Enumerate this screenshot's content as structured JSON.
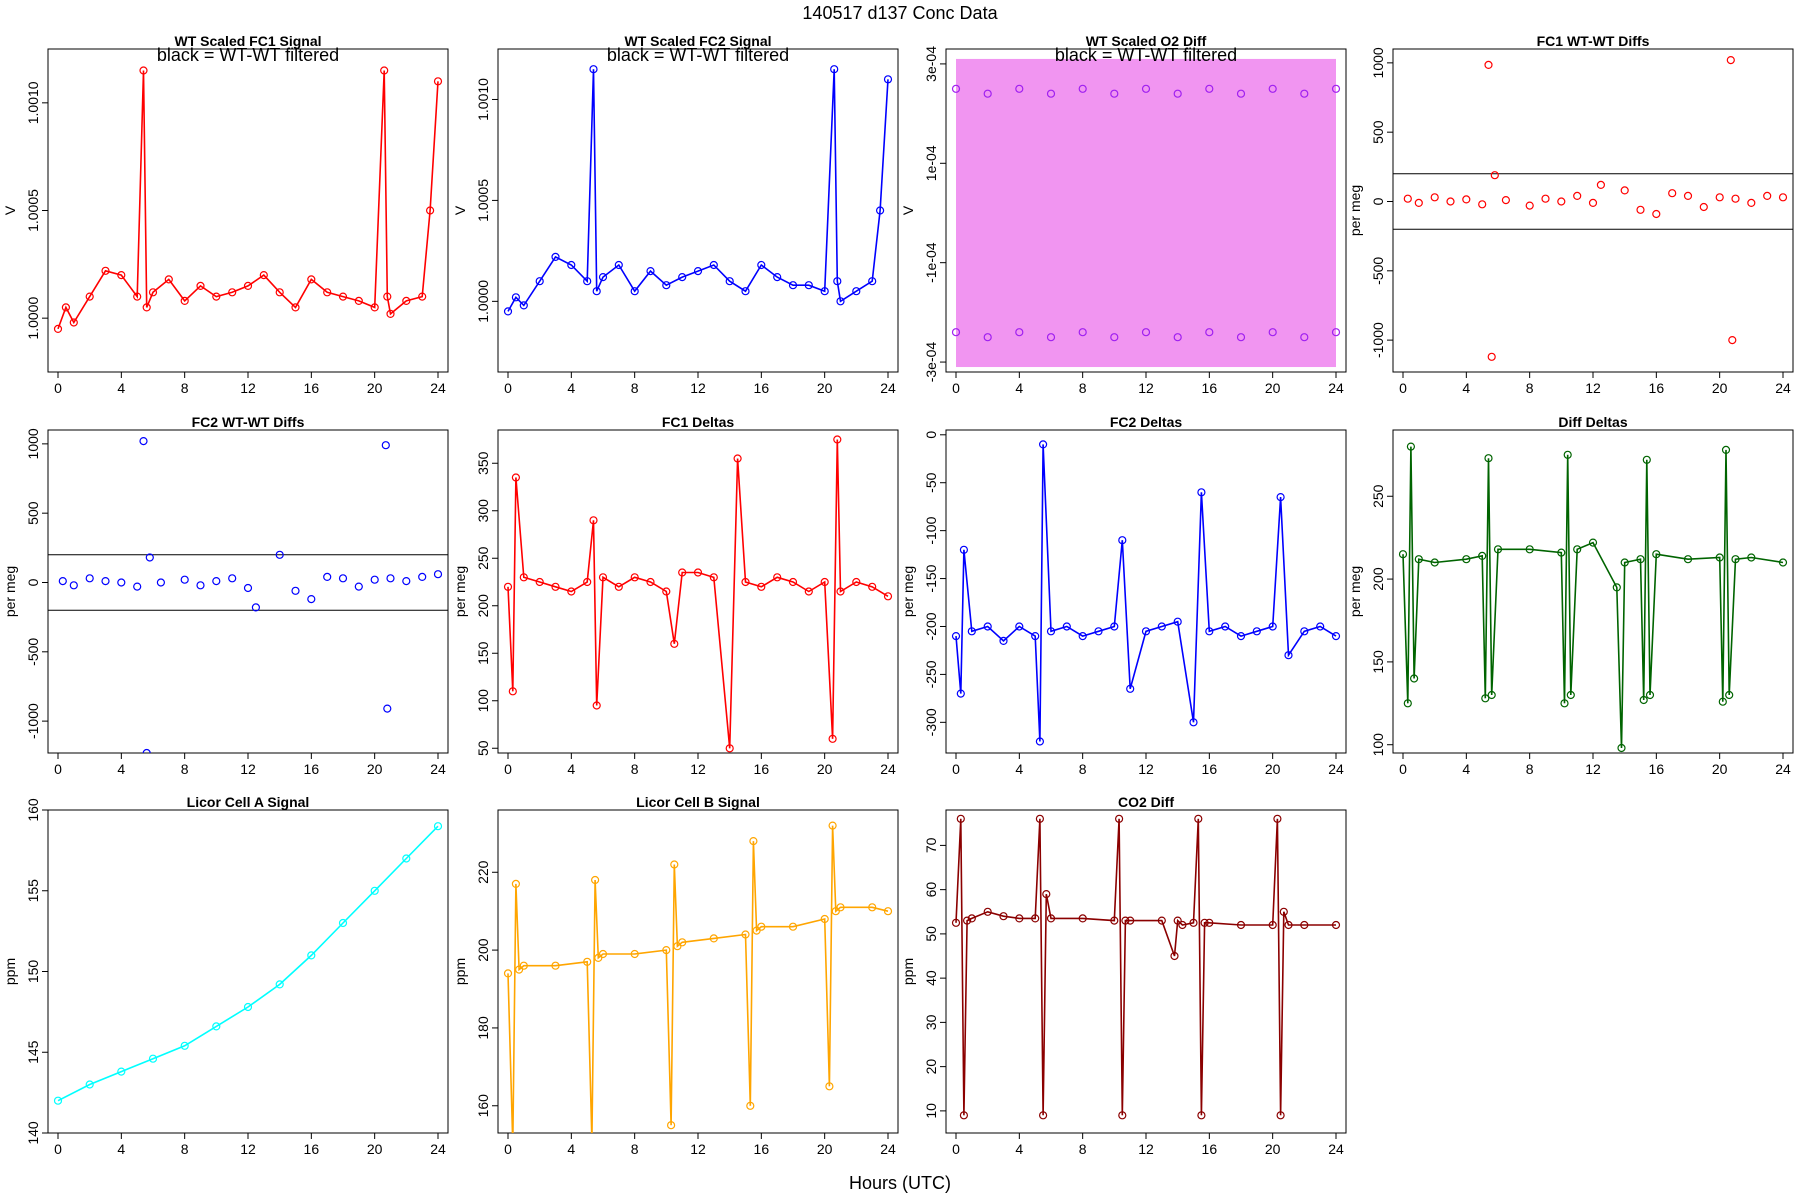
{
  "figure": {
    "title": "140517   d137   Conc Data",
    "xlabel": "Hours (UTC)",
    "xticks": [
      0,
      4,
      8,
      12,
      16,
      20,
      24
    ],
    "xlim": [
      0,
      24
    ]
  },
  "chart_data": [
    {
      "type": "line",
      "title": "WT Scaled FC1 Signal",
      "ylabel": "V",
      "annotation": "black = WT-WT filtered",
      "color": "#ff0000",
      "ylim": [
        0.99975,
        1.00125
      ],
      "yticks": [
        1.0,
        1.0005,
        1.001
      ],
      "ytick_labels": [
        "1.0000",
        "1.0005",
        "1.0010"
      ],
      "series": [
        {
          "name": "FC1 signal",
          "x": [
            0,
            0.5,
            1,
            2,
            3,
            4,
            5,
            5.4,
            5.6,
            6,
            7,
            8,
            9,
            10,
            11,
            12,
            13,
            14,
            15,
            16,
            17,
            18,
            19,
            20,
            20.6,
            20.8,
            21,
            22,
            23,
            23.5,
            24
          ],
          "y": [
            0.99995,
            1.00005,
            0.99998,
            1.0001,
            1.00022,
            1.0002,
            1.0001,
            1.00115,
            1.00005,
            1.00012,
            1.00018,
            1.00008,
            1.00015,
            1.0001,
            1.00012,
            1.00015,
            1.0002,
            1.00012,
            1.00005,
            1.00018,
            1.00012,
            1.0001,
            1.00008,
            1.00005,
            1.00115,
            1.0001,
            1.00002,
            1.00008,
            1.0001,
            1.0005,
            1.0011
          ]
        }
      ]
    },
    {
      "type": "line",
      "title": "WT Scaled FC2 Signal",
      "ylabel": "V",
      "annotation": "black = WT-WT filtered",
      "color": "#0000ff",
      "ylim": [
        0.99965,
        1.00125
      ],
      "yticks": [
        1.0,
        1.0005,
        1.001
      ],
      "ytick_labels": [
        "1.0000",
        "1.0005",
        "1.0010"
      ],
      "series": [
        {
          "name": "FC2 signal",
          "x": [
            0,
            0.5,
            1,
            2,
            3,
            4,
            5,
            5.4,
            5.6,
            6,
            7,
            8,
            9,
            10,
            11,
            12,
            13,
            14,
            15,
            16,
            17,
            18,
            19,
            20,
            20.6,
            20.8,
            21,
            22,
            23,
            23.5,
            24
          ],
          "y": [
            0.99995,
            1.00002,
            0.99998,
            1.0001,
            1.00022,
            1.00018,
            1.0001,
            1.00115,
            1.00005,
            1.00012,
            1.00018,
            1.00005,
            1.00015,
            1.00008,
            1.00012,
            1.00015,
            1.00018,
            1.0001,
            1.00005,
            1.00018,
            1.00012,
            1.00008,
            1.00008,
            1.00005,
            1.00115,
            1.0001,
            1.0,
            1.00005,
            1.0001,
            1.00045,
            1.0011
          ]
        }
      ]
    },
    {
      "type": "scatter",
      "title": "WT Scaled O2 Diff",
      "ylabel": "V",
      "annotation": "black = WT-WT filtered",
      "color": "#ee82ee",
      "point_color": "#a020f0",
      "ylim": [
        -0.00032,
        0.00033
      ],
      "yticks": [
        -0.0003,
        -0.0001,
        0.0001,
        0.0003
      ],
      "ytick_labels": [
        "-3e-04",
        "-1e-04",
        "1e-04",
        "3e-04"
      ],
      "series": [
        {
          "name": "upper",
          "x": [
            0,
            2,
            4,
            6,
            8,
            10,
            12,
            14,
            16,
            18,
            20,
            22,
            24
          ],
          "y": [
            0.00025,
            0.00024,
            0.00025,
            0.00024,
            0.00025,
            0.00024,
            0.00025,
            0.00024,
            0.00025,
            0.00024,
            0.00025,
            0.00024,
            0.00025
          ]
        },
        {
          "name": "lower",
          "x": [
            0,
            2,
            4,
            6,
            8,
            10,
            12,
            14,
            16,
            18,
            20,
            22,
            24
          ],
          "y": [
            -0.00024,
            -0.00025,
            -0.00024,
            -0.00025,
            -0.00024,
            -0.00025,
            -0.00024,
            -0.00025,
            -0.00024,
            -0.00025,
            -0.00024,
            -0.00025,
            -0.00024
          ]
        }
      ]
    },
    {
      "type": "scatter",
      "title": "FC1 WT-WT Diffs",
      "ylabel": "per meg",
      "color": "#ff0000",
      "ylim": [
        -1230,
        1100
      ],
      "yticks": [
        -1000,
        -500,
        0,
        500,
        1000
      ],
      "ytick_labels": [
        "-1000",
        "-500",
        "0",
        "500",
        "1000"
      ],
      "hlines": [
        200,
        -200
      ],
      "series": [
        {
          "name": "FC1 diffs",
          "x": [
            0.3,
            1,
            2,
            3,
            4,
            5,
            5.4,
            5.6,
            5.8,
            6.5,
            8,
            9,
            10,
            11,
            12,
            12.5,
            14,
            15,
            16,
            17,
            18,
            19,
            20,
            20.7,
            20.8,
            21,
            22,
            23,
            24
          ],
          "y": [
            20,
            -10,
            30,
            0,
            15,
            -20,
            985,
            -1120,
            190,
            10,
            -30,
            20,
            0,
            40,
            -10,
            120,
            80,
            -60,
            -90,
            60,
            40,
            -40,
            30,
            1020,
            -1000,
            20,
            -10,
            40,
            30
          ]
        }
      ]
    },
    {
      "type": "scatter",
      "title": "FC2 WT-WT Diffs",
      "ylabel": "per meg",
      "color": "#0000ff",
      "ylim": [
        -1230,
        1100
      ],
      "yticks": [
        -1000,
        -500,
        0,
        500,
        1000
      ],
      "ytick_labels": [
        "-1000",
        "-500",
        "0",
        "500",
        "1000"
      ],
      "hlines": [
        200,
        -200
      ],
      "series": [
        {
          "name": "FC2 diffs",
          "x": [
            0.3,
            1,
            2,
            3,
            4,
            5,
            5.4,
            5.6,
            5.8,
            6.5,
            8,
            9,
            10,
            11,
            12,
            12.5,
            14,
            15,
            16,
            17,
            18,
            19,
            20,
            20.7,
            20.8,
            21,
            22,
            23,
            24
          ],
          "y": [
            10,
            -20,
            30,
            10,
            0,
            -30,
            1020,
            -1230,
            180,
            0,
            20,
            -20,
            10,
            30,
            -40,
            -180,
            200,
            -60,
            -120,
            40,
            30,
            -30,
            20,
            990,
            -910,
            30,
            10,
            40,
            60
          ]
        }
      ]
    },
    {
      "type": "line",
      "title": "FC1 Deltas",
      "ylabel": "per meg",
      "color": "#ff0000",
      "ylim": [
        45,
        385
      ],
      "yticks": [
        50,
        100,
        150,
        200,
        250,
        300,
        350
      ],
      "ytick_labels": [
        "50",
        "100",
        "150",
        "200",
        "250",
        "300",
        "350"
      ],
      "series": [
        {
          "name": "FC1 deltas",
          "x": [
            0,
            0.3,
            0.5,
            1,
            2,
            3,
            4,
            5,
            5.4,
            5.6,
            6,
            7,
            8,
            9,
            10,
            10.5,
            11,
            12,
            13,
            14,
            14.5,
            15,
            16,
            17,
            18,
            19,
            20,
            20.5,
            20.8,
            21,
            22,
            23,
            24
          ],
          "y": [
            220,
            110,
            335,
            230,
            225,
            220,
            215,
            225,
            290,
            95,
            230,
            220,
            230,
            225,
            215,
            160,
            235,
            235,
            230,
            50,
            355,
            225,
            220,
            230,
            225,
            215,
            225,
            60,
            375,
            215,
            225,
            220,
            210
          ]
        }
      ]
    },
    {
      "type": "line",
      "title": "FC2 Deltas",
      "ylabel": "per meg",
      "color": "#0000ff",
      "ylim": [
        -332,
        5
      ],
      "yticks": [
        -300,
        -250,
        -200,
        -150,
        -100,
        -50,
        0
      ],
      "ytick_labels": [
        "-300",
        "-250",
        "-200",
        "-150",
        "-100",
        "-50",
        "0"
      ],
      "series": [
        {
          "name": "FC2 deltas",
          "x": [
            0,
            0.3,
            0.5,
            1,
            2,
            3,
            4,
            5,
            5.3,
            5.5,
            6,
            7,
            8,
            9,
            10,
            10.5,
            11,
            12,
            13,
            14,
            15,
            15.5,
            16,
            17,
            18,
            19,
            20,
            20.5,
            21,
            22,
            23,
            24
          ],
          "y": [
            -210,
            -270,
            -120,
            -205,
            -200,
            -215,
            -200,
            -210,
            -320,
            -10,
            -205,
            -200,
            -210,
            -205,
            -200,
            -110,
            -265,
            -205,
            -200,
            -195,
            -300,
            -60,
            -205,
            -200,
            -210,
            -205,
            -200,
            -65,
            -230,
            -205,
            -200,
            -210
          ]
        }
      ]
    },
    {
      "type": "line",
      "title": "Diff Deltas",
      "ylabel": "per meg",
      "color": "#006400",
      "ylim": [
        95,
        290
      ],
      "yticks": [
        100,
        150,
        200,
        250
      ],
      "ytick_labels": [
        "100",
        "150",
        "200",
        "250"
      ],
      "series": [
        {
          "name": "Diff deltas",
          "x": [
            0,
            0.3,
            0.5,
            0.7,
            1,
            2,
            4,
            5,
            5.2,
            5.4,
            5.6,
            6,
            8,
            10,
            10.2,
            10.4,
            10.6,
            11,
            12,
            13.5,
            13.8,
            14,
            15,
            15.2,
            15.4,
            15.6,
            16,
            18,
            20,
            20.2,
            20.4,
            20.6,
            21,
            22,
            24
          ],
          "y": [
            215,
            125,
            280,
            140,
            212,
            210,
            212,
            214,
            128,
            273,
            130,
            218,
            218,
            216,
            125,
            275,
            130,
            218,
            222,
            195,
            98,
            210,
            212,
            127,
            272,
            130,
            215,
            212,
            213,
            126,
            278,
            130,
            212,
            213,
            210
          ]
        }
      ]
    },
    {
      "type": "line",
      "title": "Licor Cell A Signal",
      "ylabel": "ppm",
      "color": "#00ffff",
      "ylim": [
        140,
        160
      ],
      "yticks": [
        140,
        145,
        150,
        155,
        160
      ],
      "ytick_labels": [
        "140",
        "145",
        "150",
        "155",
        "160"
      ],
      "series": [
        {
          "name": "Cell A",
          "x": [
            0,
            2,
            4,
            6,
            8,
            10,
            12,
            14,
            16,
            18,
            20,
            22,
            24
          ],
          "y": [
            142,
            143,
            143.8,
            144.6,
            145.4,
            146.6,
            147.8,
            149.2,
            151,
            153,
            155,
            157,
            159
          ]
        }
      ]
    },
    {
      "type": "line",
      "title": "Licor Cell B Signal",
      "ylabel": "ppm",
      "color": "#ffa500",
      "ylim": [
        153,
        236
      ],
      "yticks": [
        160,
        180,
        200,
        220
      ],
      "ytick_labels": [
        "160",
        "180",
        "200",
        "220"
      ],
      "series": [
        {
          "name": "Cell B",
          "x": [
            0,
            0.3,
            0.5,
            0.7,
            1,
            3,
            5,
            5.3,
            5.5,
            5.7,
            6,
            8,
            10,
            10.3,
            10.5,
            10.7,
            11,
            13,
            15,
            15.3,
            15.5,
            15.7,
            16,
            18,
            20,
            20.3,
            20.5,
            20.7,
            21,
            23,
            24
          ],
          "y": [
            194,
            150,
            217,
            195,
            196,
            196,
            197,
            151,
            218,
            198,
            199,
            199,
            200,
            155,
            222,
            201,
            202,
            203,
            204,
            160,
            228,
            205,
            206,
            206,
            208,
            165,
            232,
            210,
            211,
            211,
            210
          ]
        }
      ]
    },
    {
      "type": "line",
      "title": "CO2 Diff",
      "ylabel": "ppm",
      "color": "#8b0000",
      "ylim": [
        5,
        78
      ],
      "yticks": [
        10,
        20,
        30,
        40,
        50,
        60,
        70
      ],
      "ytick_labels": [
        "10",
        "20",
        "30",
        "40",
        "50",
        "60",
        "70"
      ],
      "series": [
        {
          "name": "CO2 diff",
          "x": [
            0,
            0.3,
            0.5,
            0.7,
            1,
            2,
            3,
            4,
            5,
            5.3,
            5.5,
            5.7,
            6,
            8,
            10,
            10.3,
            10.5,
            10.7,
            11,
            13,
            13.8,
            14,
            14.3,
            15,
            15.3,
            15.5,
            15.7,
            16,
            18,
            20,
            20.3,
            20.5,
            20.7,
            21,
            22,
            24
          ],
          "y": [
            52.5,
            76,
            9,
            53,
            53.5,
            55,
            54,
            53.5,
            53.5,
            76,
            9,
            59,
            53.5,
            53.5,
            53,
            76,
            9,
            53,
            53,
            53,
            45,
            53,
            52,
            52.5,
            76,
            9,
            52.5,
            52.5,
            52,
            52,
            76,
            9,
            55,
            52,
            52,
            52
          ]
        }
      ]
    }
  ]
}
